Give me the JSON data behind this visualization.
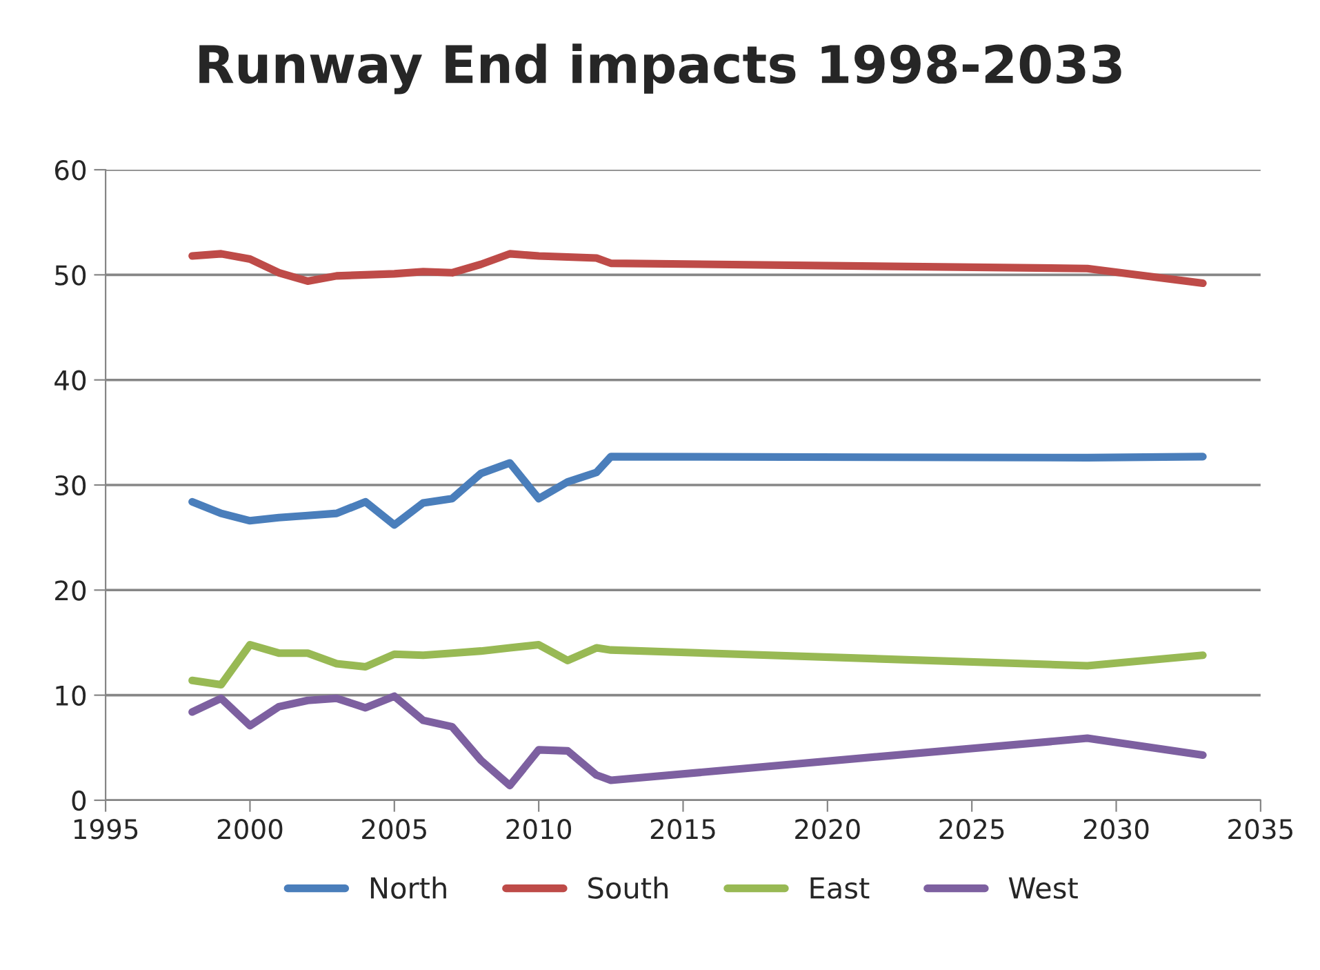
{
  "chart_data": {
    "type": "line",
    "title": "Runway End impacts 1998-2033",
    "x": [
      1998,
      1999,
      2000,
      2001,
      2002,
      2003,
      2004,
      2005,
      2006,
      2007,
      2008,
      2009,
      2010,
      2011,
      2012,
      2012.5,
      2029,
      2033
    ],
    "series": [
      {
        "name": "North",
        "color": "#4a7ebb",
        "values": [
          28.4,
          27.3,
          26.6,
          26.9,
          27.1,
          27.3,
          28.4,
          26.2,
          28.3,
          28.7,
          31.1,
          32.1,
          28.7,
          30.3,
          31.2,
          32.7,
          32.6,
          32.7
        ]
      },
      {
        "name": "South",
        "color": "#be4b48",
        "values": [
          51.8,
          52.0,
          51.5,
          50.2,
          49.4,
          49.9,
          50.0,
          50.1,
          50.3,
          50.2,
          51.0,
          52.0,
          51.8,
          51.7,
          51.6,
          51.1,
          50.6,
          49.2
        ]
      },
      {
        "name": "East",
        "color": "#98b954",
        "values": [
          11.4,
          11.0,
          14.8,
          14.0,
          14.0,
          13.0,
          12.7,
          13.9,
          13.8,
          14.0,
          14.2,
          14.5,
          14.8,
          13.3,
          14.5,
          14.3,
          12.8,
          13.8
        ]
      },
      {
        "name": "West",
        "color": "#7d60a0",
        "values": [
          8.4,
          9.7,
          7.1,
          8.9,
          9.5,
          9.7,
          8.8,
          9.9,
          7.6,
          7.0,
          3.8,
          1.4,
          4.8,
          4.7,
          2.4,
          1.9,
          5.9,
          4.3
        ]
      }
    ],
    "xlim": [
      1995,
      2035
    ],
    "xticks": [
      1995,
      2000,
      2005,
      2010,
      2015,
      2020,
      2025,
      2030,
      2035
    ],
    "ylim": [
      0,
      60
    ],
    "yticks": [
      0,
      10,
      20,
      30,
      40,
      50,
      60
    ],
    "grid": "y",
    "legend": "bottom",
    "marker": "none",
    "line_style": "solid"
  }
}
